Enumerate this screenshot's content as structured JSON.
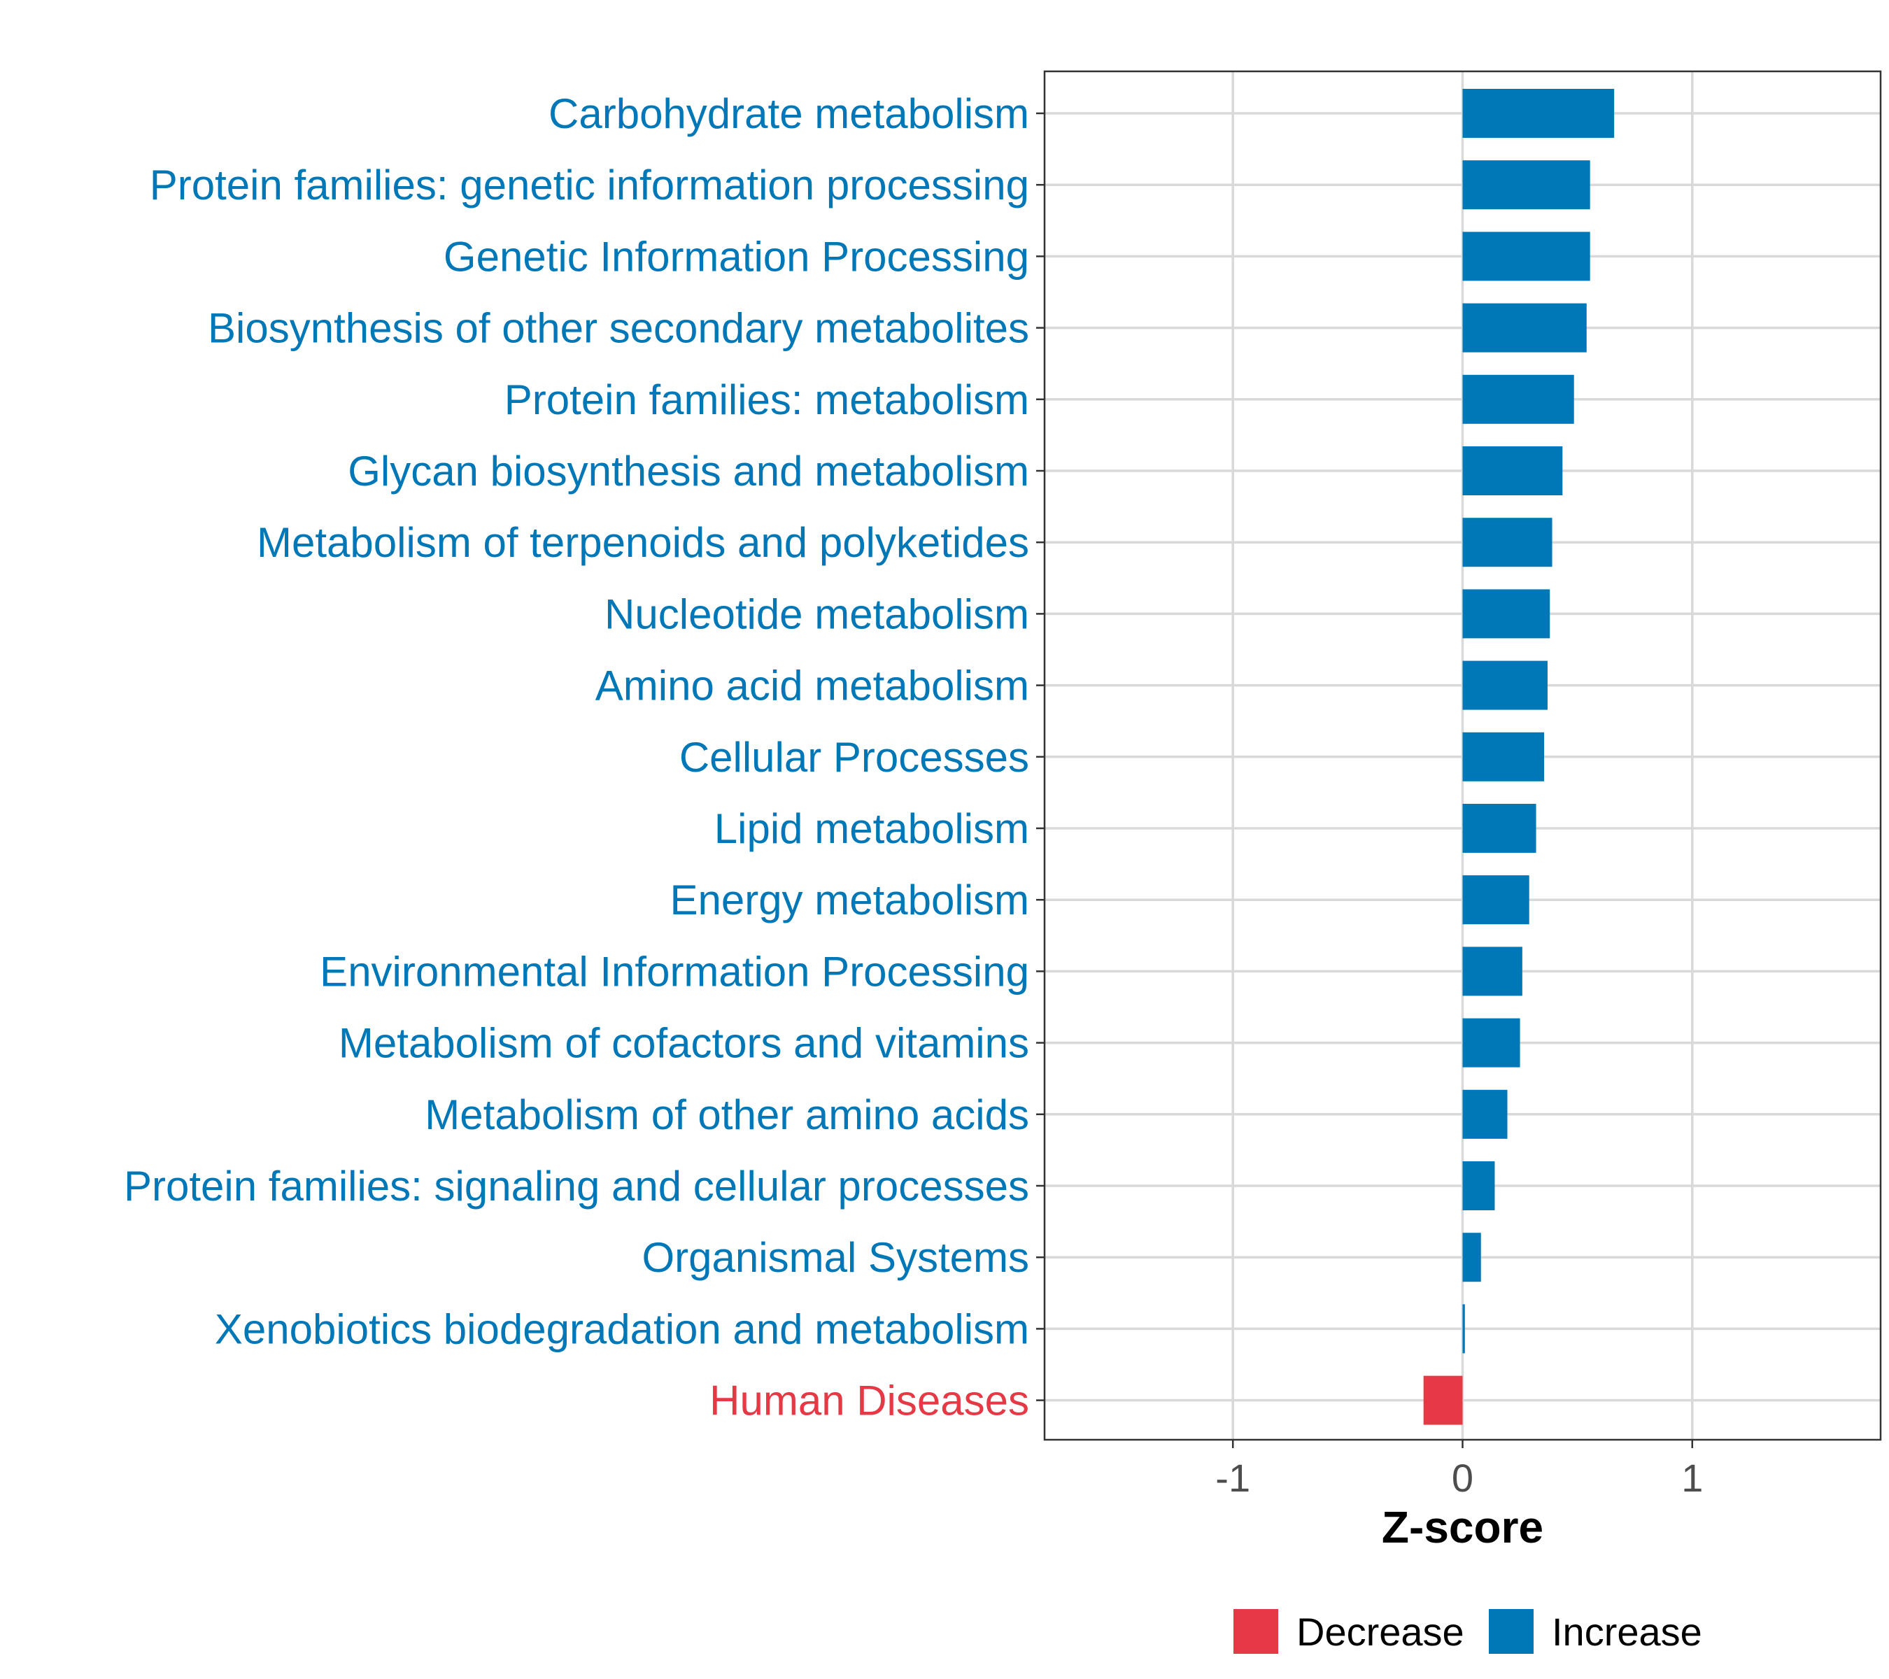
{
  "chart_data": {
    "type": "bar",
    "orientation": "horizontal",
    "title": "",
    "xlabel": "Z-score",
    "ylabel": "",
    "xlim": [
      -1.82,
      1.82
    ],
    "xticks": [
      -1,
      0,
      1
    ],
    "xtick_labels": [
      "-1",
      "0",
      "1"
    ],
    "grid": true,
    "legend_position": "bottom",
    "colors": {
      "Decrease": "#e63946",
      "Increase": "#0077b6"
    },
    "legend": [
      {
        "label": "Decrease",
        "color": "#e63946"
      },
      {
        "label": "Increase",
        "color": "#0077b6"
      }
    ],
    "categories": [
      "Carbohydrate metabolism",
      "Protein families: genetic information processing",
      "Genetic Information Processing",
      "Biosynthesis of other secondary metabolites",
      "Protein families: metabolism",
      "Glycan biosynthesis and metabolism",
      "Metabolism of terpenoids and polyketides",
      "Nucleotide metabolism",
      "Amino acid metabolism",
      "Cellular Processes",
      "Lipid metabolism",
      "Energy metabolism",
      "Environmental Information Processing",
      "Metabolism of cofactors and vitamins",
      "Metabolism of other amino acids",
      "Protein families: signaling and cellular processes",
      "Organismal Systems",
      "Xenobiotics biodegradation and metabolism",
      "Human Diseases"
    ],
    "values": [
      0.66,
      0.555,
      0.555,
      0.54,
      0.485,
      0.435,
      0.39,
      0.38,
      0.37,
      0.355,
      0.32,
      0.29,
      0.26,
      0.25,
      0.195,
      0.14,
      0.08,
      0.01,
      -0.17
    ],
    "direction": [
      "Increase",
      "Increase",
      "Increase",
      "Increase",
      "Increase",
      "Increase",
      "Increase",
      "Increase",
      "Increase",
      "Increase",
      "Increase",
      "Increase",
      "Increase",
      "Increase",
      "Increase",
      "Increase",
      "Increase",
      "Increase",
      "Decrease"
    ]
  }
}
